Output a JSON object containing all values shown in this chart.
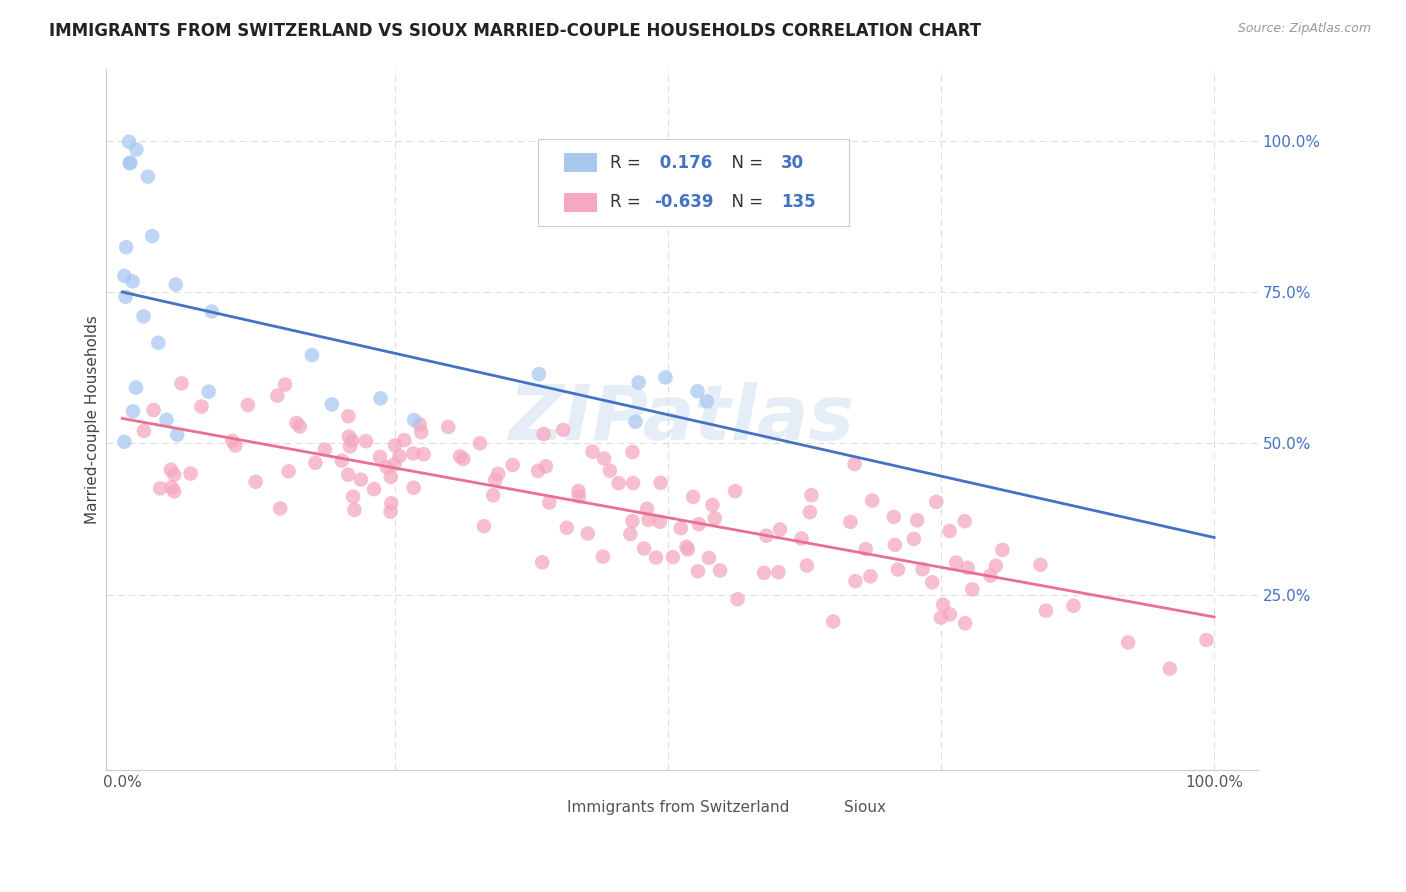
{
  "title": "IMMIGRANTS FROM SWITZERLAND VS SIOUX MARRIED-COUPLE HOUSEHOLDS CORRELATION CHART",
  "source": "Source: ZipAtlas.com",
  "ylabel": "Married-couple Households",
  "blue_color": "#A8C8F0",
  "pink_color": "#F5A8C0",
  "blue_line_color": "#4472C4",
  "pink_line_color": "#E87090",
  "dashed_color": "#A8C8F0",
  "grid_color": "#DDDDDD",
  "background_color": "#FFFFFF",
  "ytick_color": "#4472C4",
  "watermark_color": "#CCDDEE",
  "blue_seed": 42,
  "pink_seed": 7,
  "n_blue": 30,
  "n_pink": 135,
  "legend_r1_label": "R = ",
  "legend_r1_val": " 0.176",
  "legend_n1_label": "N = ",
  "legend_n1_val": "30",
  "legend_r2_val": "-0.639",
  "legend_n2_val": "135"
}
